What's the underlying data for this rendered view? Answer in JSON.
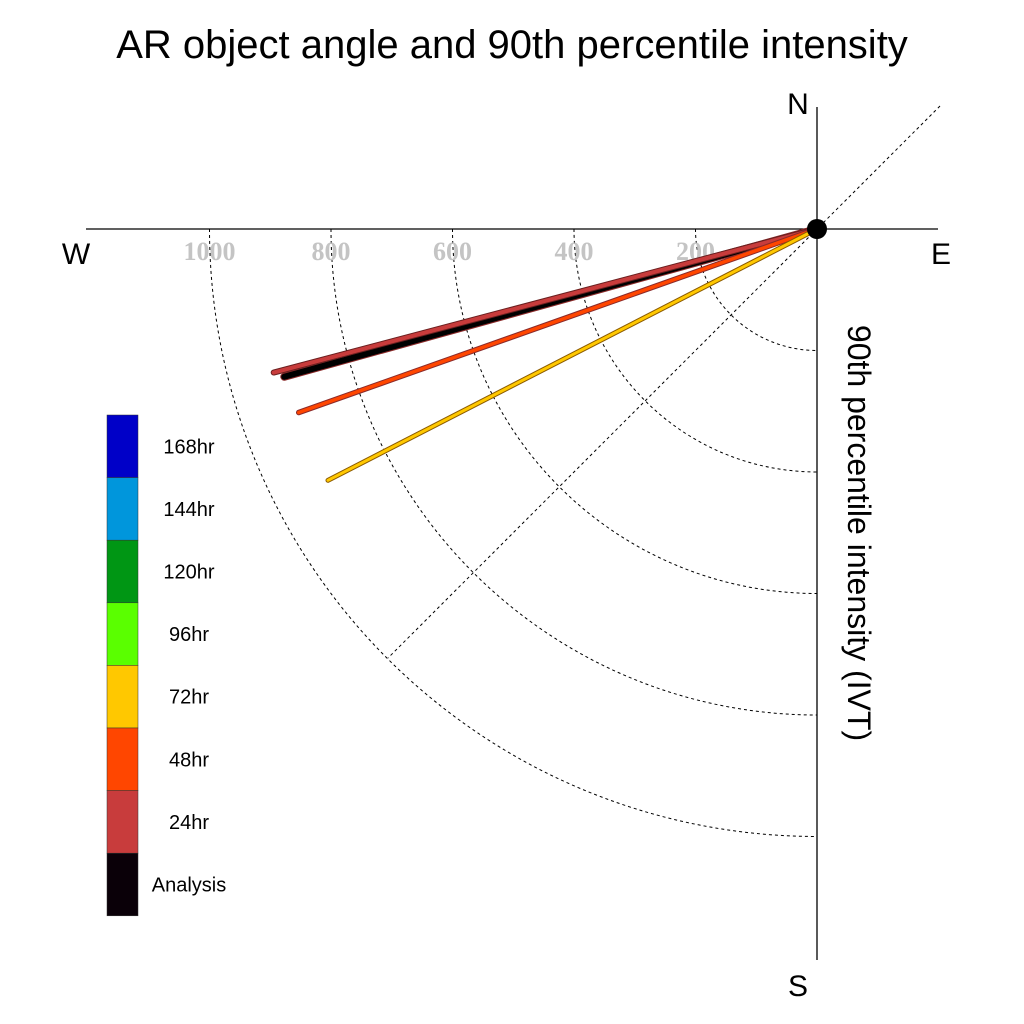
{
  "chart_data": {
    "type": "polar-vector",
    "title": "AR object angle and 90th percentile intensity",
    "radial_label": "90th percentile intensity (IVT)",
    "compass": {
      "north": "N",
      "south": "S",
      "east": "E",
      "west": "W"
    },
    "radial_ticks": [
      200,
      400,
      600,
      800,
      1000
    ],
    "radial_max": 1200,
    "grid": true,
    "legend_position": "left",
    "legend": [
      {
        "label": "168hr",
        "color": "#0000c8"
      },
      {
        "label": "144hr",
        "color": "#0096dc"
      },
      {
        "label": "120hr",
        "color": "#009614"
      },
      {
        "label": "96hr",
        "color": "#5aff00"
      },
      {
        "label": "72hr",
        "color": "#ffc800"
      },
      {
        "label": "48hr",
        "color": "#ff4600"
      },
      {
        "label": "24hr",
        "color": "#c83c3c"
      },
      {
        "label": "Analysis",
        "color": "#0a0008"
      }
    ],
    "series": [
      {
        "name": "Analysis",
        "intensity": 910,
        "direction_deg_below_west": 15.5,
        "color": "#000000",
        "outline": "#8b2a2a",
        "width": 6
      },
      {
        "name": "24hr",
        "intensity": 925,
        "direction_deg_below_west": 14.8,
        "color": "#c83c3c",
        "outline": "#6a1f1f",
        "width": 4
      },
      {
        "name": "48hr",
        "intensity": 905,
        "direction_deg_below_west": 19.5,
        "color": "#ff4600",
        "outline": "#8b2a2a",
        "width": 3.5
      },
      {
        "name": "72hr",
        "intensity": 905,
        "direction_deg_below_west": 27.2,
        "color": "#ffc800",
        "outline": "#8b5a00",
        "width": 3
      }
    ]
  }
}
